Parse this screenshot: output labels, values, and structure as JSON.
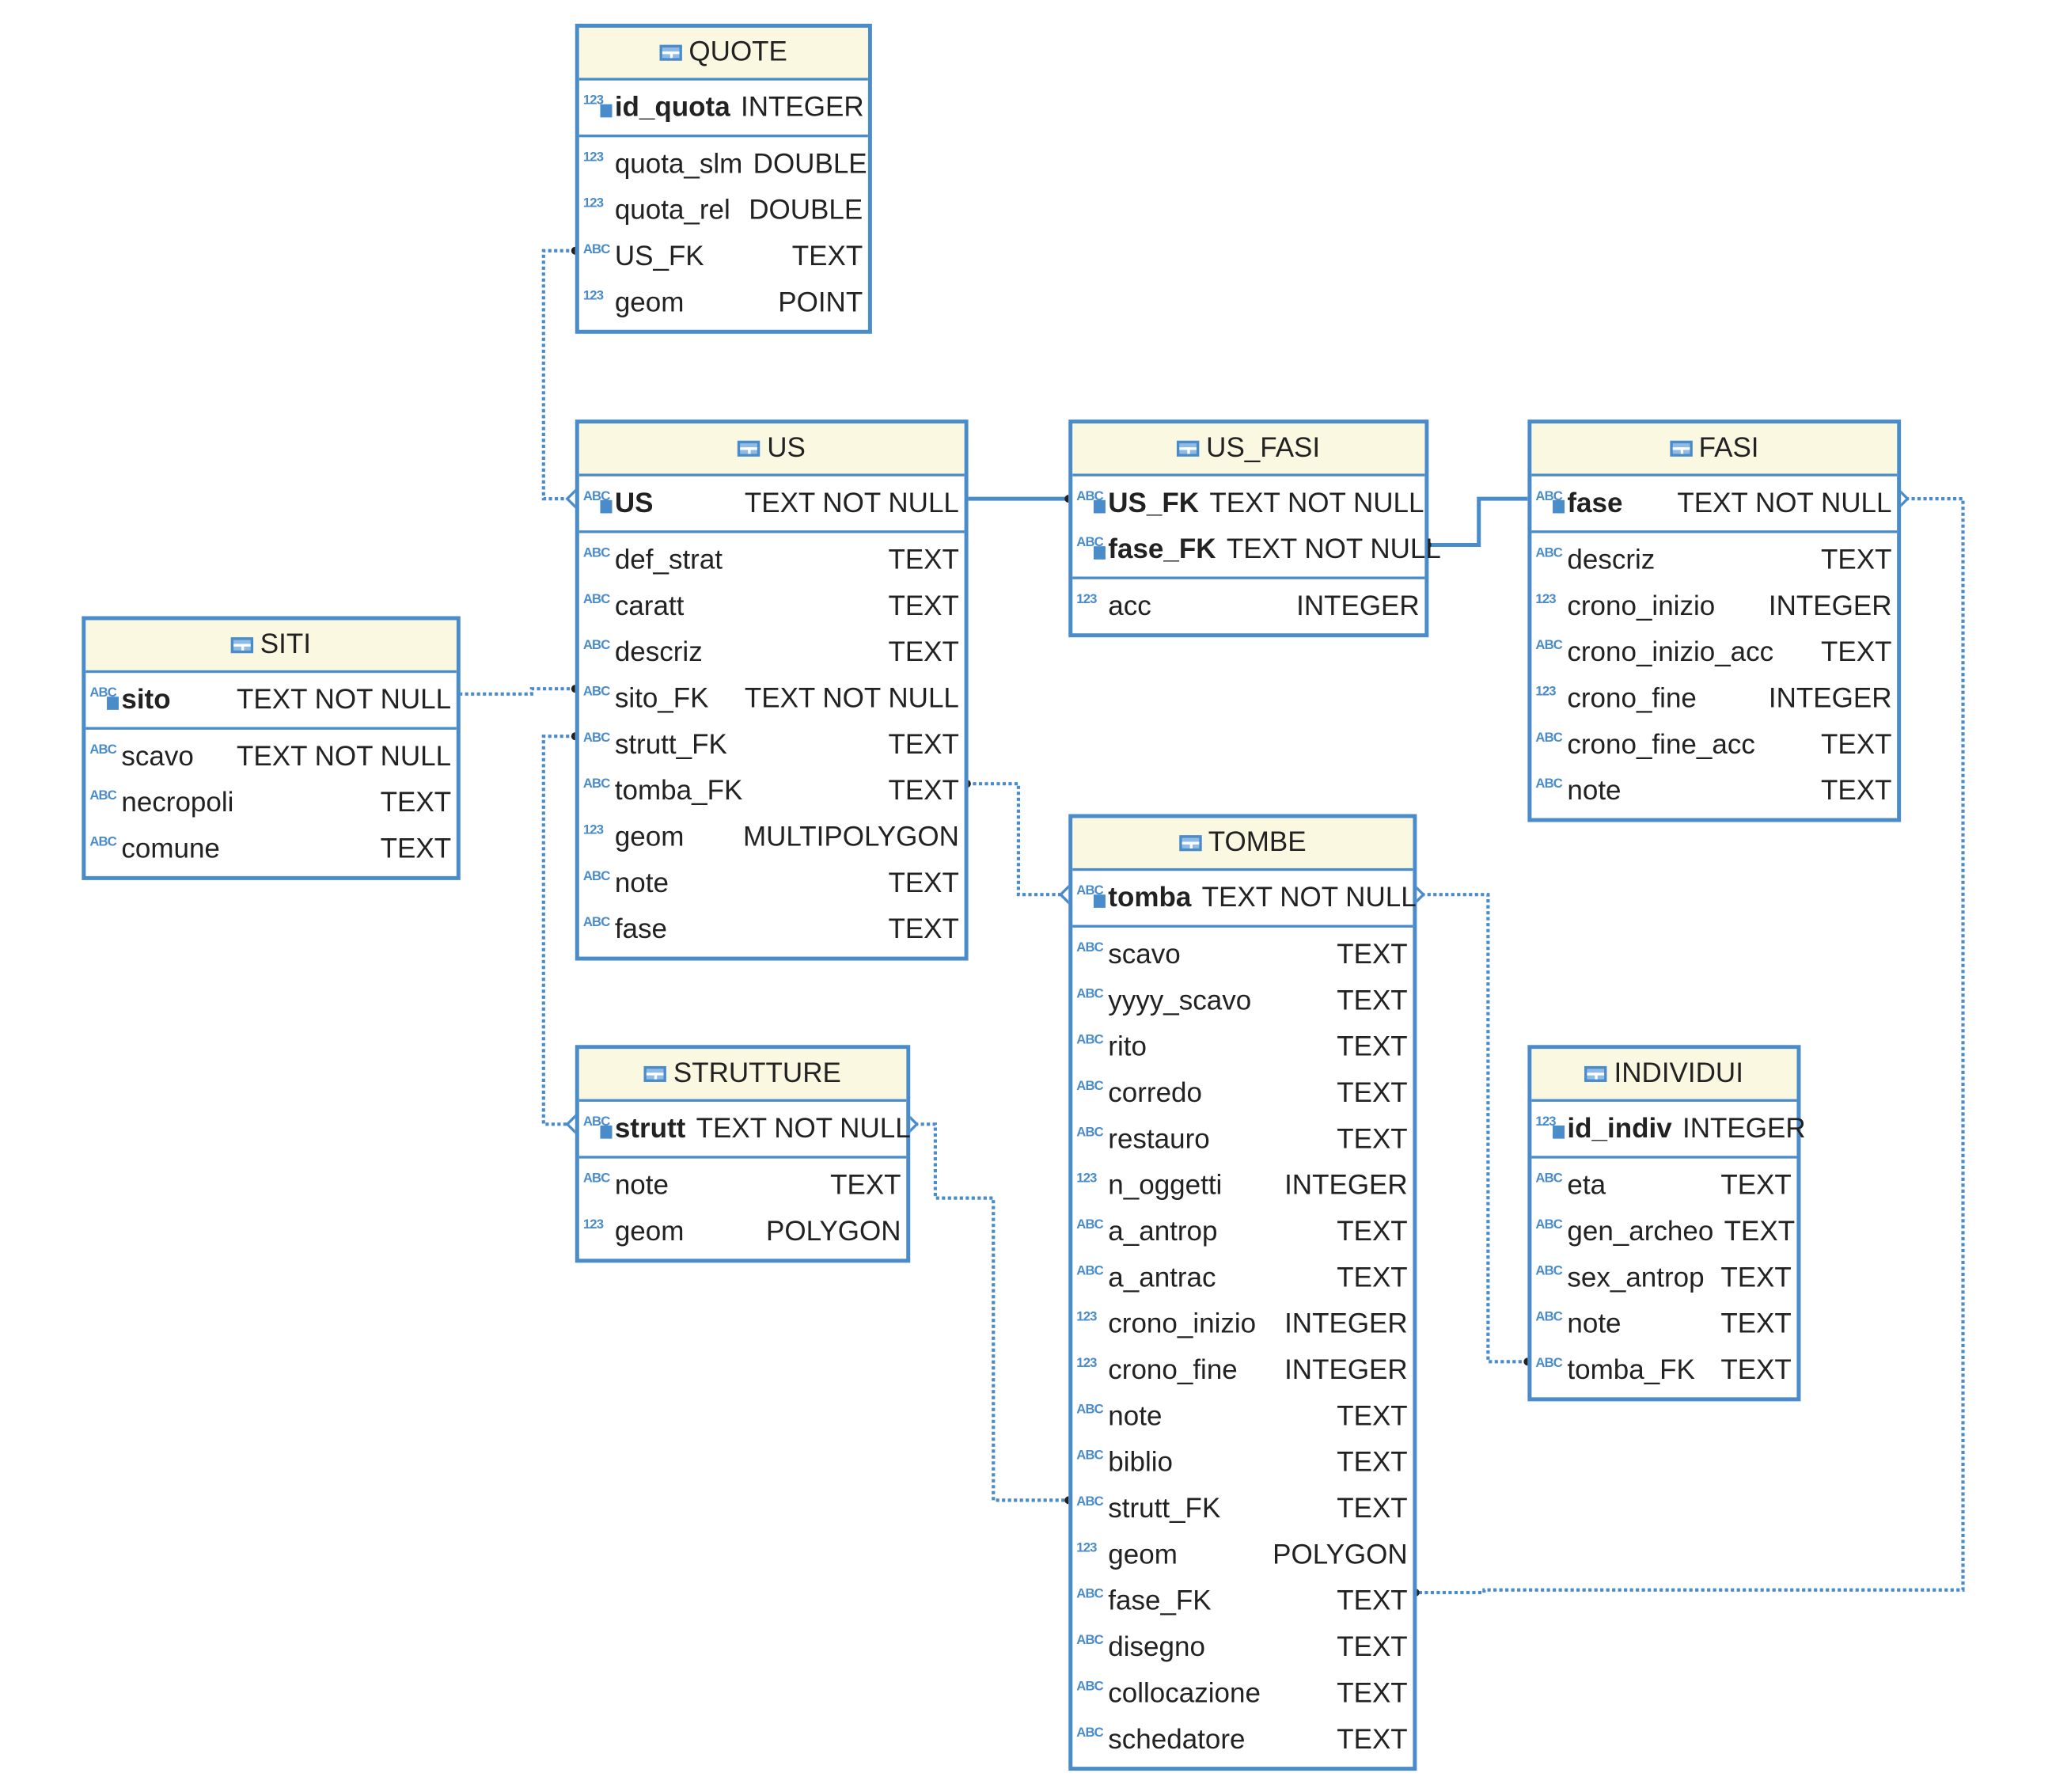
{
  "colors": {
    "border": "#4a8cca",
    "header_bg": "#fbf8e2",
    "text": "#222222"
  },
  "tables": [
    {
      "name": "QUOTE",
      "pk": [
        {
          "field": "id_quota",
          "type": "INTEGER",
          "icon": "123"
        }
      ],
      "fields": [
        {
          "field": "quota_slm",
          "type": "DOUBLE",
          "icon": "123"
        },
        {
          "field": "quota_rel",
          "type": "DOUBLE",
          "icon": "123"
        },
        {
          "field": "US_FK",
          "type": "TEXT",
          "icon": "ABC"
        },
        {
          "field": "geom",
          "type": "POINT",
          "icon": "123"
        }
      ]
    },
    {
      "name": "US",
      "pk": [
        {
          "field": "US",
          "type": "TEXT NOT NULL",
          "icon": "ABC"
        }
      ],
      "fields": [
        {
          "field": "def_strat",
          "type": "TEXT",
          "icon": "ABC"
        },
        {
          "field": "caratt",
          "type": "TEXT",
          "icon": "ABC"
        },
        {
          "field": "descriz",
          "type": "TEXT",
          "icon": "ABC"
        },
        {
          "field": "sito_FK",
          "type": "TEXT NOT NULL",
          "icon": "ABC"
        },
        {
          "field": "strutt_FK",
          "type": "TEXT",
          "icon": "ABC"
        },
        {
          "field": "tomba_FK",
          "type": "TEXT",
          "icon": "ABC"
        },
        {
          "field": "geom",
          "type": "MULTIPOLYGON",
          "icon": "123"
        },
        {
          "field": "note",
          "type": "TEXT",
          "icon": "ABC"
        },
        {
          "field": "fase",
          "type": "TEXT",
          "icon": "ABC"
        }
      ]
    },
    {
      "name": "US_FASI",
      "pk": [
        {
          "field": "US_FK",
          "type": "TEXT NOT NULL",
          "icon": "ABC"
        },
        {
          "field": "fase_FK",
          "type": "TEXT NOT NULL",
          "icon": "ABC"
        }
      ],
      "fields": [
        {
          "field": "acc",
          "type": "INTEGER",
          "icon": "123"
        }
      ]
    },
    {
      "name": "FASI",
      "pk": [
        {
          "field": "fase",
          "type": "TEXT NOT NULL",
          "icon": "ABC"
        }
      ],
      "fields": [
        {
          "field": "descriz",
          "type": "TEXT",
          "icon": "ABC"
        },
        {
          "field": "crono_inizio",
          "type": "INTEGER",
          "icon": "123"
        },
        {
          "field": "crono_inizio_acc",
          "type": "TEXT",
          "icon": "ABC"
        },
        {
          "field": "crono_fine",
          "type": "INTEGER",
          "icon": "123"
        },
        {
          "field": "crono_fine_acc",
          "type": "TEXT",
          "icon": "ABC"
        },
        {
          "field": "note",
          "type": "TEXT",
          "icon": "ABC"
        }
      ]
    },
    {
      "name": "SITI",
      "pk": [
        {
          "field": "sito",
          "type": "TEXT NOT NULL",
          "icon": "ABC"
        }
      ],
      "fields": [
        {
          "field": "scavo",
          "type": "TEXT NOT NULL",
          "icon": "ABC"
        },
        {
          "field": "necropoli",
          "type": "TEXT",
          "icon": "ABC"
        },
        {
          "field": "comune",
          "type": "TEXT",
          "icon": "ABC"
        }
      ]
    },
    {
      "name": "TOMBE",
      "pk": [
        {
          "field": "tomba",
          "type": "TEXT NOT NULL",
          "icon": "ABC"
        }
      ],
      "fields": [
        {
          "field": "scavo",
          "type": "TEXT",
          "icon": "ABC"
        },
        {
          "field": "yyyy_scavo",
          "type": "TEXT",
          "icon": "ABC"
        },
        {
          "field": "rito",
          "type": "TEXT",
          "icon": "ABC"
        },
        {
          "field": "corredo",
          "type": "TEXT",
          "icon": "ABC"
        },
        {
          "field": "restauro",
          "type": "TEXT",
          "icon": "ABC"
        },
        {
          "field": "n_oggetti",
          "type": "INTEGER",
          "icon": "123"
        },
        {
          "field": "a_antrop",
          "type": "TEXT",
          "icon": "ABC"
        },
        {
          "field": "a_antrac",
          "type": "TEXT",
          "icon": "ABC"
        },
        {
          "field": "crono_inizio",
          "type": "INTEGER",
          "icon": "123"
        },
        {
          "field": "crono_fine",
          "type": "INTEGER",
          "icon": "123"
        },
        {
          "field": "note",
          "type": "TEXT",
          "icon": "ABC"
        },
        {
          "field": "biblio",
          "type": "TEXT",
          "icon": "ABC"
        },
        {
          "field": "strutt_FK",
          "type": "TEXT",
          "icon": "ABC"
        },
        {
          "field": "geom",
          "type": "POLYGON",
          "icon": "123"
        },
        {
          "field": "fase_FK",
          "type": "TEXT",
          "icon": "ABC"
        },
        {
          "field": "disegno",
          "type": "TEXT",
          "icon": "ABC"
        },
        {
          "field": "collocazione",
          "type": "TEXT",
          "icon": "ABC"
        },
        {
          "field": "schedatore",
          "type": "TEXT",
          "icon": "ABC"
        }
      ]
    },
    {
      "name": "STRUTTURE",
      "pk": [
        {
          "field": "strutt",
          "type": "TEXT NOT NULL",
          "icon": "ABC"
        }
      ],
      "fields": [
        {
          "field": "note",
          "type": "TEXT",
          "icon": "ABC"
        },
        {
          "field": "geom",
          "type": "POLYGON",
          "icon": "123"
        }
      ]
    },
    {
      "name": "INDIVIDUI",
      "pk": [
        {
          "field": "id_indiv",
          "type": "INTEGER",
          "icon": "123"
        }
      ],
      "fields": [
        {
          "field": "eta",
          "type": "TEXT",
          "icon": "ABC"
        },
        {
          "field": "gen_archeo",
          "type": "TEXT",
          "icon": "ABC"
        },
        {
          "field": "sex_antrop",
          "type": "TEXT",
          "icon": "ABC"
        },
        {
          "field": "note",
          "type": "TEXT",
          "icon": "ABC"
        },
        {
          "field": "tomba_FK",
          "type": "TEXT",
          "icon": "ABC"
        }
      ]
    }
  ],
  "relations": [
    {
      "from": "QUOTE.US_FK",
      "to": "US.US",
      "style": "dotted"
    },
    {
      "from": "US_FASI.US_FK",
      "to": "US.US",
      "style": "solid"
    },
    {
      "from": "US_FASI.fase_FK",
      "to": "FASI.fase",
      "style": "solid"
    },
    {
      "from": "US.sito_FK",
      "to": "SITI.sito",
      "style": "dotted"
    },
    {
      "from": "US.strutt_FK",
      "to": "STRUTTURE.strutt",
      "style": "dotted"
    },
    {
      "from": "US.tomba_FK",
      "to": "TOMBE.tomba",
      "style": "dotted"
    },
    {
      "from": "INDIVIDUI.tomba_FK",
      "to": "TOMBE.tomba",
      "style": "dotted"
    },
    {
      "from": "TOMBE.strutt_FK",
      "to": "STRUTTURE.strutt",
      "style": "dotted"
    },
    {
      "from": "TOMBE.fase_FK",
      "to": "FASI.fase",
      "style": "dotted"
    }
  ]
}
